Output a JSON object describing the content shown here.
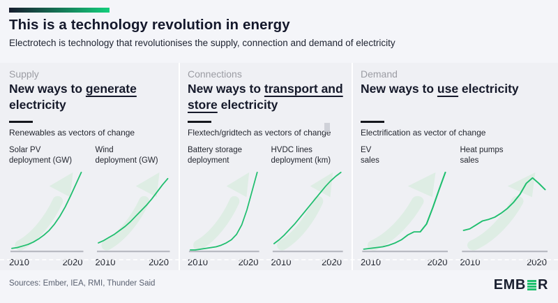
{
  "page": {
    "title": "This is a technology revolution in energy",
    "subtitle": "Electrotech is technology that revolutionises the supply, connection and demand of electricity",
    "sources": "Sources: Ember, IEA, RMI, Thunder Said",
    "logo": {
      "part1": "EMB",
      "part2": "R",
      "stylized_letter": "E"
    }
  },
  "colors": {
    "background": "#f4f5f9",
    "panel": "#eff0f4",
    "line_green": "#1fbe6e",
    "arrow_green": "#d8ecdf",
    "axis_gray": "#b8bac2",
    "brand_gradient_from": "#161b2e",
    "brand_gradient_to": "#13ce7c",
    "logo_green": "#1fc06e",
    "category_gray": "#9b9ca3"
  },
  "columns": [
    {
      "category": "Supply",
      "heading_parts": [
        {
          "text": "New ways to ",
          "u": false
        },
        {
          "text": "generate",
          "u": true
        },
        {
          "text": " electricity",
          "u": false
        }
      ],
      "vector_note": "Renewables as vectors of change",
      "charts": [
        {
          "label_line1": "Solar PV",
          "label_line2": "deployment (GW)",
          "tick_left": "2010",
          "tick_right": "2020",
          "data_index": 0
        },
        {
          "label_line1": "Wind",
          "label_line2": "deployment (GW)",
          "tick_left": "2010",
          "tick_right": "2020",
          "data_index": 1
        }
      ]
    },
    {
      "category": "Connections",
      "heading_parts": [
        {
          "text": "New ways to ",
          "u": false
        },
        {
          "text": "transport and store",
          "u": true
        },
        {
          "text": " electricity",
          "u": false
        }
      ],
      "vector_note": "Flextech/gridtech as vectors of change",
      "charts": [
        {
          "label_line1": "Battery storage",
          "label_line2": "deployment",
          "tick_left": "2010",
          "tick_right": "2020",
          "data_index": 2
        },
        {
          "label_line1": "HVDC lines",
          "label_line2": "deployment (km)",
          "tick_left": "2010",
          "tick_right": "2020",
          "data_index": 3
        }
      ]
    },
    {
      "category": "Demand",
      "heading_parts": [
        {
          "text": "New ways to ",
          "u": false
        },
        {
          "text": "use",
          "u": true
        },
        {
          "text": " electricity",
          "u": false
        }
      ],
      "vector_note": "Electrification as vector of change",
      "charts": [
        {
          "label_line1": "EV",
          "label_line2": "sales",
          "tick_left": "2010",
          "tick_right": "2020",
          "data_index": 4
        },
        {
          "label_line1": "Heat pumps",
          "label_line2": "sales",
          "tick_left": "2010",
          "tick_right": "2020",
          "data_index": 5
        }
      ]
    }
  ],
  "chart_data": [
    {
      "type": "line",
      "title": "Solar PV deployment (GW)",
      "x": [
        2010,
        2011,
        2012,
        2013,
        2014,
        2015,
        2016,
        2017,
        2018,
        2019,
        2020,
        2021,
        2022,
        2023
      ],
      "values": [
        3,
        4,
        6,
        8,
        11,
        15,
        20,
        26,
        34,
        44,
        56,
        70,
        85,
        100
      ],
      "x_ticks_shown": [
        "2010",
        "2020"
      ],
      "xlabel": "",
      "ylabel": "",
      "note": "relative scale, exponential growth, no y-axis labels shown"
    },
    {
      "type": "line",
      "title": "Wind deployment (GW)",
      "x": [
        2010,
        2011,
        2012,
        2013,
        2014,
        2015,
        2016,
        2017,
        2018,
        2019,
        2020,
        2021,
        2022,
        2023
      ],
      "values": [
        10,
        13,
        17,
        21,
        26,
        31,
        37,
        44,
        51,
        58,
        66,
        75,
        84,
        92
      ],
      "x_ticks_shown": [
        "2010",
        "2020"
      ],
      "xlabel": "",
      "ylabel": "",
      "note": "relative scale, steady near-linear growth"
    },
    {
      "type": "line",
      "title": "Battery storage deployment",
      "x": [
        2010,
        2011,
        2012,
        2013,
        2014,
        2015,
        2016,
        2017,
        2018,
        2019,
        2020,
        2021,
        2022,
        2023
      ],
      "values": [
        1,
        1,
        2,
        3,
        4,
        5,
        7,
        10,
        14,
        21,
        33,
        52,
        76,
        100
      ],
      "x_ticks_shown": [
        "2010",
        "2020"
      ],
      "xlabel": "",
      "ylabel": "",
      "note": "relative scale, hockey-stick growth"
    },
    {
      "type": "line",
      "title": "HVDC lines deployment (km)",
      "x": [
        2010,
        2011,
        2012,
        2013,
        2014,
        2015,
        2016,
        2017,
        2018,
        2019,
        2020,
        2021,
        2022,
        2023
      ],
      "values": [
        9,
        14,
        20,
        27,
        34,
        42,
        50,
        58,
        66,
        74,
        82,
        89,
        95,
        100
      ],
      "x_ticks_shown": [
        "2010",
        "2020"
      ],
      "xlabel": "",
      "ylabel": "",
      "note": "relative scale, smooth rising growth"
    },
    {
      "type": "line",
      "title": "EV sales",
      "x": [
        2010,
        2011,
        2012,
        2013,
        2014,
        2015,
        2016,
        2017,
        2018,
        2019,
        2020,
        2021,
        2022,
        2023
      ],
      "values": [
        2,
        3,
        4,
        5,
        7,
        10,
        14,
        20,
        24,
        24,
        34,
        55,
        78,
        100
      ],
      "x_ticks_shown": [
        "2010",
        "2020"
      ],
      "xlabel": "",
      "ylabel": "",
      "note": "relative scale, plateau ~2018-2019 then sharp surge"
    },
    {
      "type": "line",
      "title": "Heat pumps sales",
      "x": [
        2010,
        2011,
        2012,
        2013,
        2014,
        2015,
        2016,
        2017,
        2018,
        2019,
        2020,
        2021,
        2022,
        2023
      ],
      "values": [
        26,
        28,
        33,
        38,
        40,
        43,
        48,
        54,
        62,
        72,
        86,
        93,
        86,
        78
      ],
      "x_ticks_shown": [
        "2010",
        "2020"
      ],
      "xlabel": "",
      "ylabel": "",
      "note": "relative scale, rises to peak ~2021 then declines"
    }
  ]
}
